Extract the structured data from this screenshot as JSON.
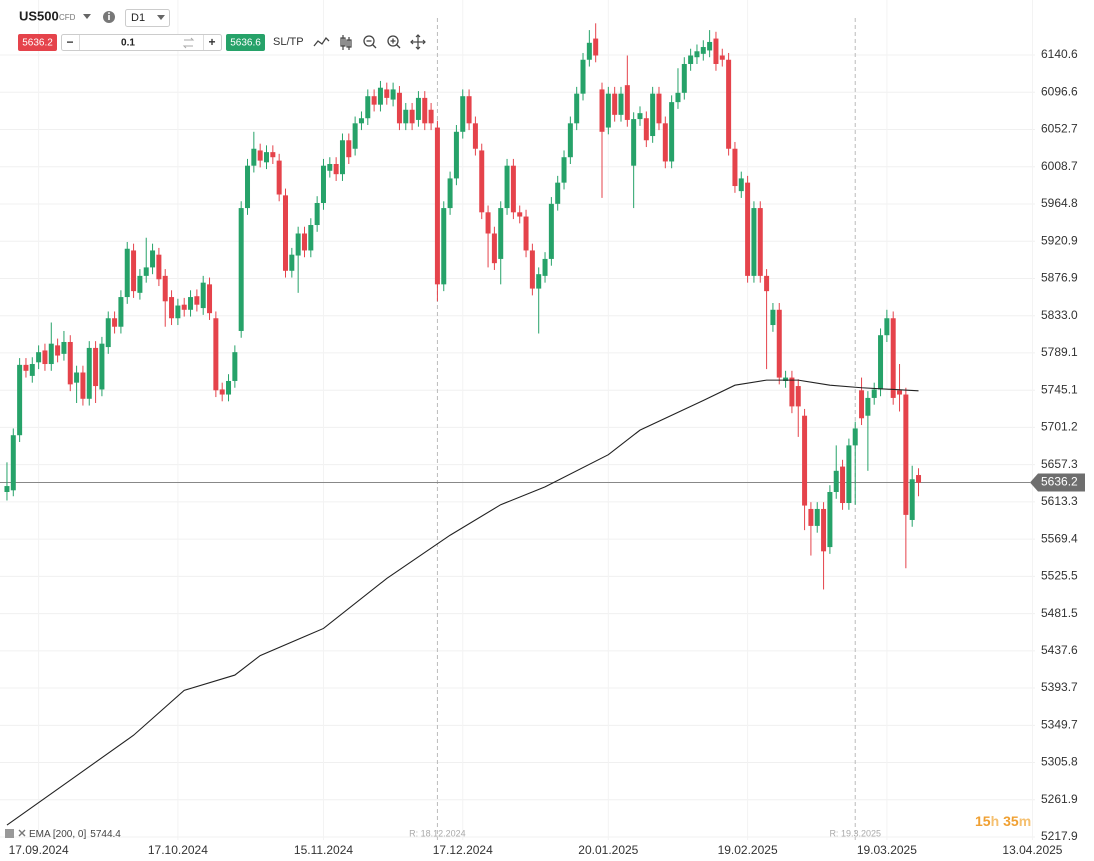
{
  "toolbar": {
    "symbol": "US500",
    "symbol_type": "CFD",
    "timeframe": "D1",
    "sell_price": 5636.2,
    "minus": "−",
    "volume": 0.1,
    "plus": "+",
    "buy_price": 5636.6,
    "sltp": "SL/TP"
  },
  "timer": {
    "hours": "15",
    "hours_unit": "h",
    "minutes": "35",
    "minutes_unit": "m"
  },
  "chart_data": {
    "type": "candlestick",
    "up_color": "#26a269",
    "down_color": "#e5434b",
    "grid": true,
    "xlim": [
      -1.1,
      162.4
    ],
    "xticks": [
      {
        "value": 5,
        "label": "17.09.2024"
      },
      {
        "value": 27,
        "label": "17.10.2024"
      },
      {
        "value": 50,
        "label": "15.11.2024"
      },
      {
        "value": 72,
        "label": "17.12.2024"
      },
      {
        "value": 95,
        "label": "20.01.2025"
      },
      {
        "value": 117,
        "label": "19.02.2025"
      },
      {
        "value": 139,
        "label": "19.03.2025"
      },
      {
        "value": 162,
        "label": "13.04.2025"
      }
    ],
    "ylim": [
      5214.4,
      6205.5
    ],
    "yticks": [
      6140.6,
      6096.6,
      6052.7,
      6008.7,
      5964.8,
      5920.9,
      5876.9,
      {
        "value": 5833,
        "label": "5833.0"
      },
      5789.1,
      5745.1,
      5701.2,
      5657.3,
      5613.3,
      5569.4,
      5525.5,
      5481.5,
      5437.6,
      5393.7,
      5349.7,
      5305.8,
      5261.9,
      5217.9
    ],
    "open": [
      5625,
      5627,
      5692,
      5775,
      5762,
      5778,
      5792,
      5776,
      5798,
      5788,
      5802,
      5754,
      5766,
      5735,
      5795,
      5746,
      5796,
      5830,
      5820,
      5855,
      5910,
      5860,
      5880,
      5890,
      5905,
      5880,
      5855,
      5830,
      5846,
      5840,
      5856,
      5842,
      5870,
      5830,
      5746,
      5740,
      5756,
      5815,
      5960,
      6010,
      6028,
      6014,
      6026,
      6016,
      5975,
      5886,
      5904,
      5930,
      5910,
      5940,
      5966,
      6004,
      6012,
      6000,
      6040,
      6030,
      6060,
      6066,
      6092,
      6082,
      6100,
      6088,
      6096,
      6060,
      6076,
      6064,
      6090,
      6076,
      6055,
      5870,
      5960,
      5995,
      6050,
      6092,
      6060,
      6028,
      5955,
      5930,
      5900,
      5960,
      6010,
      5955,
      5950,
      5910,
      5865,
      5880,
      5900,
      5965,
      5990,
      6020,
      6060,
      6095,
      6135,
      6160,
      6100,
      6055,
      6095,
      6070,
      6105,
      6010,
      6065,
      6066,
      6045,
      6095,
      6060,
      6015,
      6085,
      6096,
      6130,
      6138,
      6142,
      6146,
      6160,
      6140,
      6135,
      6030,
      5980,
      5990,
      5880,
      5960,
      5880,
      5822,
      5840,
      5756,
      5760,
      5750,
      5715,
      5605,
      5585,
      5605,
      5560,
      5625,
      5655,
      5612,
      5680,
      5745,
      5715,
      5736,
      5746,
      5810,
      5830,
      5745,
      5740,
      5592,
      5645
    ],
    "high": [
      5660,
      5700,
      5783,
      5783,
      5784,
      5798,
      5800,
      5825,
      5806,
      5815,
      5810,
      5774,
      5774,
      5803,
      5803,
      5808,
      5838,
      5838,
      5863,
      5920,
      5918,
      5888,
      5925,
      5918,
      5913,
      5888,
      5863,
      5853,
      5854,
      5863,
      5864,
      5880,
      5878,
      5838,
      5754,
      5764,
      5798,
      5968,
      6018,
      6050,
      6036,
      6034,
      6034,
      6024,
      5983,
      5913,
      5938,
      5938,
      5948,
      5974,
      6018,
      6020,
      6020,
      6048,
      6048,
      6068,
      6074,
      6100,
      6100,
      6110,
      6108,
      6108,
      6104,
      6084,
      6084,
      6098,
      6098,
      6084,
      6063,
      5968,
      6003,
      6058,
      6100,
      6100,
      6068,
      6036,
      5963,
      5938,
      5968,
      6018,
      6018,
      5963,
      5958,
      5918,
      5890,
      5908,
      5973,
      5998,
      6028,
      6068,
      6103,
      6143,
      6170,
      6178,
      6108,
      6103,
      6103,
      6103,
      6140,
      6073,
      6080,
      6074,
      6103,
      6103,
      6068,
      6093,
      6125,
      6138,
      6148,
      6153,
      6158,
      6170,
      6168,
      6148,
      6143,
      6038,
      6003,
      5998,
      5968,
      5968,
      5888,
      5848,
      5848,
      5768,
      5768,
      5758,
      5723,
      5613,
      5613,
      5613,
      5633,
      5680,
      5663,
      5688,
      5708,
      5760,
      5744,
      5754,
      5818,
      5840,
      5838,
      5776,
      5748,
      5656,
      5653
    ],
    "low": [
      5615,
      5620,
      5684,
      5760,
      5754,
      5770,
      5768,
      5768,
      5778,
      5780,
      5744,
      5730,
      5727,
      5727,
      5730,
      5738,
      5788,
      5812,
      5812,
      5847,
      5854,
      5852,
      5872,
      5882,
      5868,
      5820,
      5822,
      5822,
      5832,
      5832,
      5838,
      5834,
      5828,
      5737,
      5732,
      5732,
      5748,
      5807,
      5952,
      6002,
      6008,
      6006,
      6012,
      5968,
      5878,
      5878,
      5860,
      5902,
      5902,
      5932,
      5958,
      5996,
      5992,
      5992,
      6012,
      6022,
      6052,
      6058,
      6074,
      6074,
      6082,
      6080,
      6052,
      6052,
      6052,
      6056,
      6052,
      6052,
      5850,
      5862,
      5952,
      5987,
      6042,
      6052,
      6022,
      5947,
      5890,
      5887,
      5870,
      5952,
      5947,
      5942,
      5902,
      5857,
      5812,
      5872,
      5892,
      5957,
      5982,
      6012,
      6052,
      6087,
      6127,
      6132,
      5972,
      6047,
      6062,
      6062,
      6056,
      5960,
      6057,
      6032,
      6037,
      6052,
      6007,
      6007,
      6077,
      6088,
      6122,
      6130,
      6134,
      6138,
      6122,
      6127,
      6022,
      5978,
      5972,
      5872,
      5872,
      5872,
      5770,
      5814,
      5752,
      5748,
      5718,
      5690,
      5580,
      5550,
      5577,
      5510,
      5552,
      5617,
      5604,
      5604,
      5610,
      5704,
      5650,
      5728,
      5738,
      5802,
      5728,
      5720,
      5535,
      5584,
      5620
    ],
    "close": [
      5632,
      5692,
      5775,
      5768,
      5776,
      5790,
      5776,
      5800,
      5786,
      5802,
      5752,
      5766,
      5735,
      5795,
      5750,
      5800,
      5830,
      5820,
      5855,
      5912,
      5862,
      5880,
      5890,
      5910,
      5876,
      5850,
      5830,
      5845,
      5840,
      5855,
      5846,
      5872,
      5836,
      5745,
      5740,
      5756,
      5790,
      5960,
      6010,
      6030,
      6016,
      6026,
      6020,
      5976,
      5886,
      5905,
      5930,
      5910,
      5940,
      5966,
      6010,
      6012,
      6000,
      6040,
      6020,
      6060,
      6066,
      6092,
      6082,
      6102,
      6090,
      6100,
      6060,
      6076,
      6060,
      6090,
      6060,
      6060,
      5870,
      5960,
      5995,
      6050,
      6092,
      6060,
      6030,
      5955,
      5930,
      5895,
      5960,
      6010,
      5955,
      5950,
      5910,
      5865,
      5882,
      5900,
      5965,
      5990,
      6020,
      6060,
      6095,
      6135,
      6155,
      6140,
      6050,
      6095,
      6070,
      6095,
      6064,
      6065,
      6072,
      6040,
      6095,
      6060,
      6015,
      6085,
      6096,
      6130,
      6140,
      6145,
      6150,
      6156,
      6130,
      6135,
      6030,
      5986,
      5995,
      5880,
      5960,
      5880,
      5862,
      5840,
      5760,
      5760,
      5726,
      5726,
      5609,
      5585,
      5605,
      5555,
      5625,
      5650,
      5612,
      5680,
      5700,
      5712,
      5736,
      5746,
      5810,
      5830,
      5736,
      5740,
      5598,
      5640,
      5636
    ],
    "ema": {
      "name": "EMA [200, 0]",
      "last_value": 5744.4,
      "color": "#222222",
      "x": [
        0,
        10,
        20,
        28,
        36,
        40,
        50,
        60,
        70,
        78,
        85,
        95,
        100,
        110,
        115,
        120,
        125,
        130,
        135,
        144
      ],
      "values": [
        5232,
        5285,
        5338,
        5391,
        5409,
        5432,
        5464,
        5523,
        5574,
        5610,
        5631,
        5669,
        5698,
        5733,
        5751,
        5757,
        5757,
        5751,
        5748,
        5744.4
      ]
    },
    "current_price": 5636.2,
    "annotations": [
      {
        "x": 68,
        "label": "R: 18.12.2024"
      },
      {
        "x": 134,
        "label": "R: 19.3.2025"
      }
    ]
  }
}
